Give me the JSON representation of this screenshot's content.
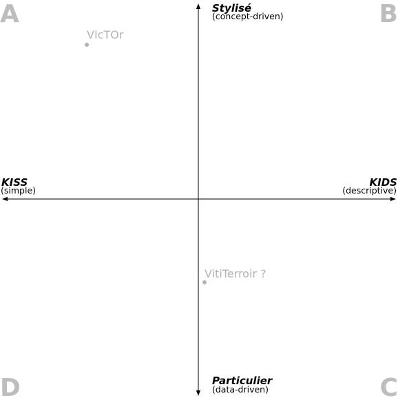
{
  "corners": {
    "a": "A",
    "b": "B",
    "c": "C",
    "d": "D"
  },
  "axes": {
    "top": {
      "title": "Stylisé",
      "subtitle": "(concept-driven)"
    },
    "bottom": {
      "title": "Particulier",
      "subtitle": "(data-driven)"
    },
    "left": {
      "title": "KISS",
      "subtitle": "(simple)"
    },
    "right": {
      "title": "KIDS",
      "subtitle": "(descriptive)"
    }
  },
  "points": [
    {
      "label": "VIcTOr"
    },
    {
      "label": "VitiTerroir ?"
    }
  ],
  "colors": {
    "axis": "#000000",
    "corner": "#bdbdbd",
    "point": "#b3b3b3"
  }
}
